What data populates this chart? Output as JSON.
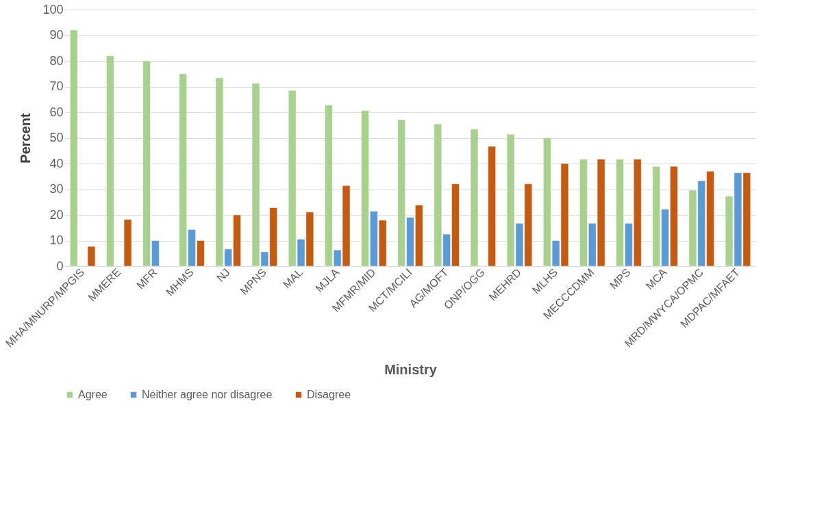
{
  "chart_data": {
    "type": "bar",
    "xlabel": "Ministry",
    "ylabel": "Percent",
    "categories": [
      "MHA/MNURP/MPGIS",
      "MMERE",
      "MFR",
      "MHMS",
      "NJ",
      "MPNS",
      "MAL",
      "MJLA",
      "MFMR/MID",
      "MCT/MCILI",
      "AG/MOFT",
      "ONP/OGG",
      "MEHRD",
      "MLHS",
      "MECCCDMM",
      "MPS",
      "MCA",
      "MRD/MWYCA/OPMC",
      "MDPAC/MFAET"
    ],
    "series": [
      {
        "name": "Agree",
        "color": "#a9d18e",
        "values": [
          92,
          82,
          80,
          75,
          73.4,
          71.3,
          68.5,
          62.8,
          60.7,
          57.1,
          55.4,
          53.4,
          51.4,
          50,
          41.7,
          41.7,
          38.9,
          29.6,
          27.3
        ]
      },
      {
        "name": "Neither agree nor disagree",
        "color": "#5b9bd5",
        "values": [
          null,
          null,
          10,
          14.3,
          6.7,
          5.6,
          10.5,
          6.3,
          21.4,
          19,
          12.5,
          null,
          16.7,
          10,
          16.7,
          16.7,
          22.2,
          33.3,
          36.4
        ]
      },
      {
        "name": "Disagree",
        "color": "#c55a11",
        "values": [
          7.7,
          18.2,
          null,
          10,
          20,
          22.8,
          21.1,
          31.4,
          17.9,
          23.8,
          32.1,
          46.7,
          32.1,
          40,
          41.7,
          41.7,
          38.9,
          37,
          36.4
        ]
      }
    ],
    "ylim": [
      0,
      100
    ],
    "yticks": [
      0,
      10,
      20,
      30,
      40,
      50,
      60,
      70,
      80,
      90,
      100
    ],
    "grid": "y",
    "legend": "bottom"
  }
}
